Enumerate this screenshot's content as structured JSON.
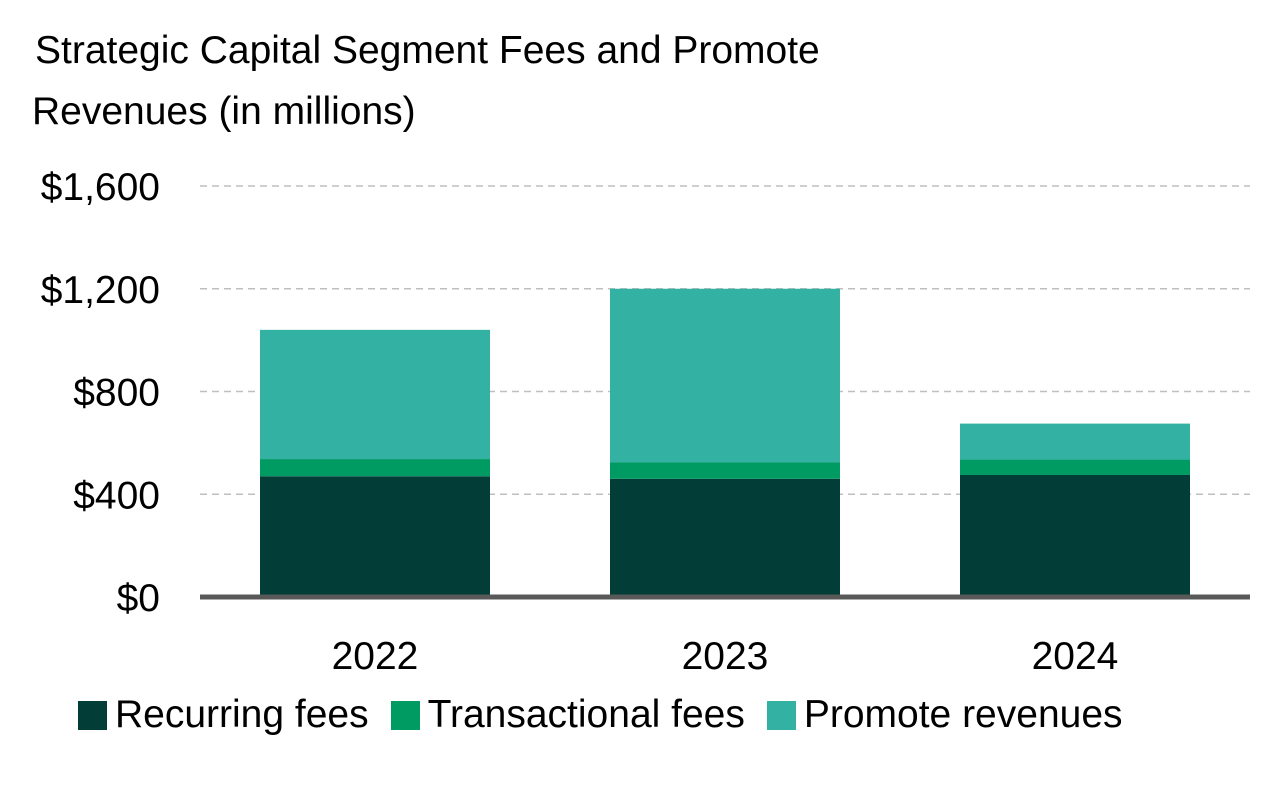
{
  "chart_data": {
    "type": "bar",
    "stacked": true,
    "title_lines": [
      "Strategic Capital Segment Fees and Promote",
      "Revenues (in millions)"
    ],
    "categories": [
      "2022",
      "2023",
      "2024"
    ],
    "series": [
      {
        "name": "Recurring fees",
        "color": "#023d37",
        "values": [
          470,
          460,
          475
        ]
      },
      {
        "name": "Transactional fees",
        "color": "#009a63",
        "values": [
          67,
          65,
          60
        ]
      },
      {
        "name": "Promote revenues",
        "color": "#33b2a3",
        "values": [
          503,
          675,
          140
        ]
      }
    ],
    "y_ticks": [
      0,
      400,
      800,
      1200,
      1600
    ],
    "y_tick_labels": [
      "$0",
      "$400",
      "$800",
      "$1,200",
      "$1,600"
    ],
    "ylim": [
      0,
      1600
    ],
    "xlabel": "",
    "ylabel": "",
    "grid": true,
    "legend_position": "bottom"
  }
}
